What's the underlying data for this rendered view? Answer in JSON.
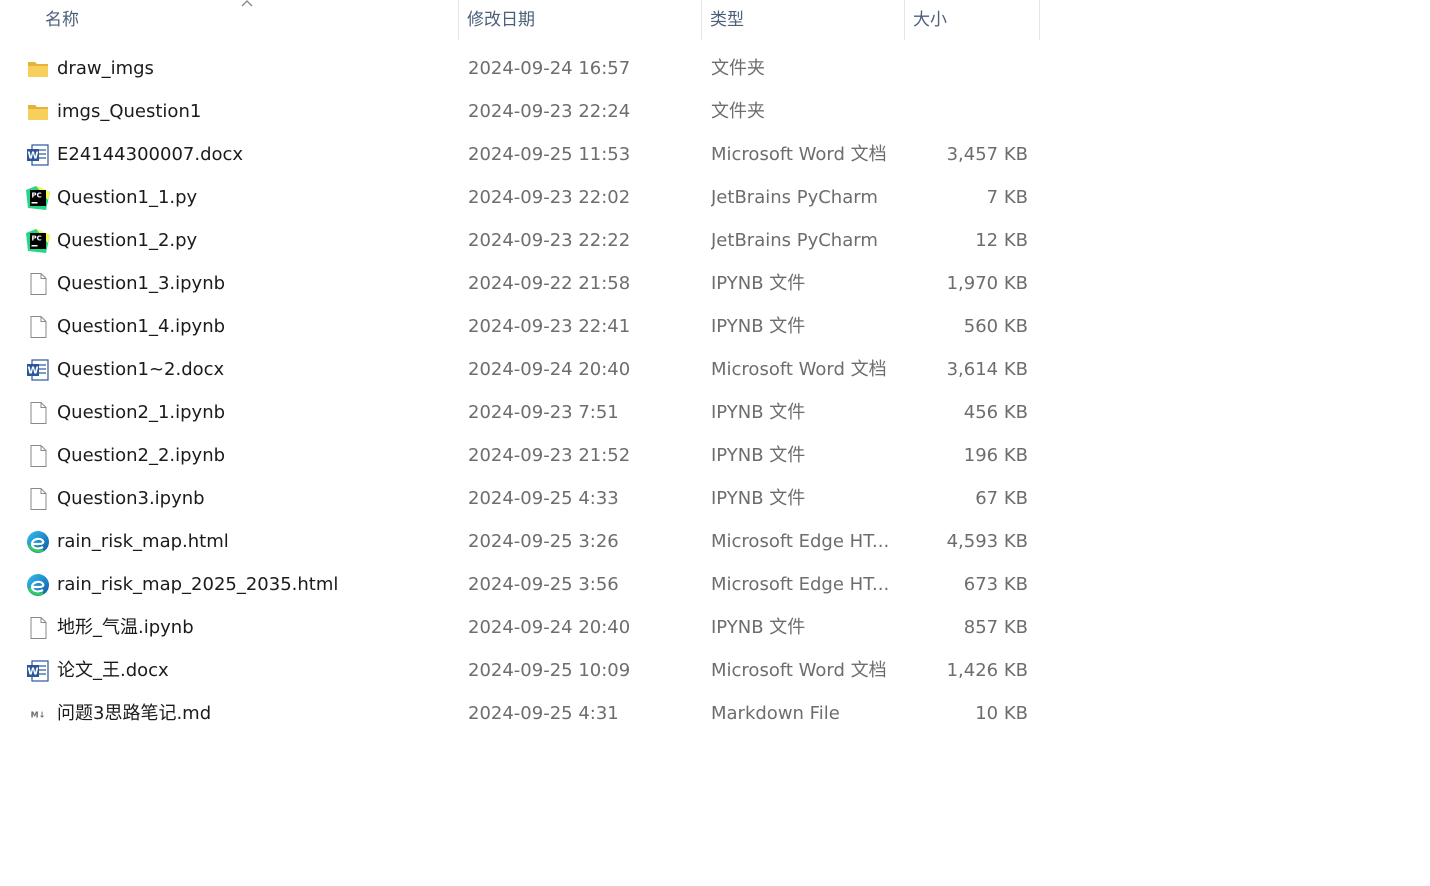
{
  "columns": {
    "name": "名称",
    "date": "修改日期",
    "type": "类型",
    "size": "大小"
  },
  "files": [
    {
      "name": "draw_imgs",
      "date": "2024-09-24 16:57",
      "type": "文件夹",
      "size": "",
      "icon": "folder-icon"
    },
    {
      "name": "imgs_Question1",
      "date": "2024-09-23 22:24",
      "type": "文件夹",
      "size": "",
      "icon": "folder-icon"
    },
    {
      "name": "E24144300007.docx",
      "date": "2024-09-25 11:53",
      "type": "Microsoft Word 文档",
      "size": "3,457 KB",
      "icon": "word-icon"
    },
    {
      "name": "Question1_1.py",
      "date": "2024-09-23 22:02",
      "type": "JetBrains PyCharm",
      "size": "7 KB",
      "icon": "pycharm-icon"
    },
    {
      "name": "Question1_2.py",
      "date": "2024-09-23 22:22",
      "type": "JetBrains PyCharm",
      "size": "12 KB",
      "icon": "pycharm-icon"
    },
    {
      "name": "Question1_3.ipynb",
      "date": "2024-09-22 21:58",
      "type": "IPYNB 文件",
      "size": "1,970 KB",
      "icon": "file-icon"
    },
    {
      "name": "Question1_4.ipynb",
      "date": "2024-09-23 22:41",
      "type": "IPYNB 文件",
      "size": "560 KB",
      "icon": "file-icon"
    },
    {
      "name": "Question1~2.docx",
      "date": "2024-09-24 20:40",
      "type": "Microsoft Word 文档",
      "size": "3,614 KB",
      "icon": "word-icon"
    },
    {
      "name": "Question2_1.ipynb",
      "date": "2024-09-23 7:51",
      "type": "IPYNB 文件",
      "size": "456 KB",
      "icon": "file-icon"
    },
    {
      "name": "Question2_2.ipynb",
      "date": "2024-09-23 21:52",
      "type": "IPYNB 文件",
      "size": "196 KB",
      "icon": "file-icon"
    },
    {
      "name": "Question3.ipynb",
      "date": "2024-09-25 4:33",
      "type": "IPYNB 文件",
      "size": "67 KB",
      "icon": "file-icon"
    },
    {
      "name": "rain_risk_map.html",
      "date": "2024-09-25 3:26",
      "type": "Microsoft Edge HT...",
      "size": "4,593 KB",
      "icon": "edge-icon"
    },
    {
      "name": "rain_risk_map_2025_2035.html",
      "date": "2024-09-25 3:56",
      "type": "Microsoft Edge HT...",
      "size": "673 KB",
      "icon": "edge-icon"
    },
    {
      "name": "地形_气温.ipynb",
      "date": "2024-09-24 20:40",
      "type": "IPYNB 文件",
      "size": "857 KB",
      "icon": "file-icon"
    },
    {
      "name": "论文_王.docx",
      "date": "2024-09-25 10:09",
      "type": "Microsoft Word 文档",
      "size": "1,426 KB",
      "icon": "word-icon"
    },
    {
      "name": "问题3思路笔记.md",
      "date": "2024-09-25 4:31",
      "type": "Markdown File",
      "size": "10 KB",
      "icon": "markdown-icon"
    }
  ]
}
